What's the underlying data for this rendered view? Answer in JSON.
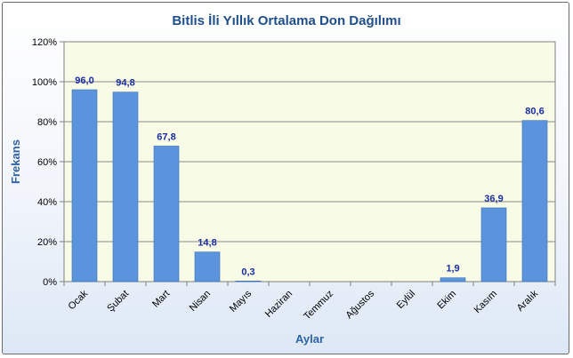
{
  "chart_data": {
    "type": "bar",
    "title": "Bitlis İli Yıllık Ortalama Don Dağılımı",
    "xlabel": "Aylar",
    "ylabel": "Frekans",
    "categories": [
      "Ocak",
      "Şubat",
      "Mart",
      "Nisan",
      "Mayıs",
      "Haziran",
      "Temmuz",
      "Ağustos",
      "Eylül",
      "Ekim",
      "Kasım",
      "Aralık"
    ],
    "values": [
      96.0,
      94.8,
      67.8,
      14.8,
      0.3,
      0,
      0,
      0,
      0,
      1.9,
      36.9,
      80.6
    ],
    "data_labels": [
      "96,0",
      "94,8",
      "67,8",
      "14,8",
      "0,3",
      "",
      "",
      "",
      "",
      "1,9",
      "36,9",
      "80,6"
    ],
    "ylim": [
      0,
      120
    ],
    "yticks": [
      0,
      20,
      40,
      60,
      80,
      100,
      120
    ],
    "ytick_labels": [
      "0%",
      "20%",
      "40%",
      "60%",
      "80%",
      "100%",
      "120%"
    ],
    "grid": true,
    "legend": "none",
    "colors": {
      "bar": "#5b93dc",
      "bar_edge": "#3c6fb4",
      "plot_bg": "#f8fbe6",
      "grid": "#8a8a8a",
      "title": "#1f4e8c",
      "axis_title": "#2e62a6",
      "data_label": "#1a2ea0"
    }
  }
}
